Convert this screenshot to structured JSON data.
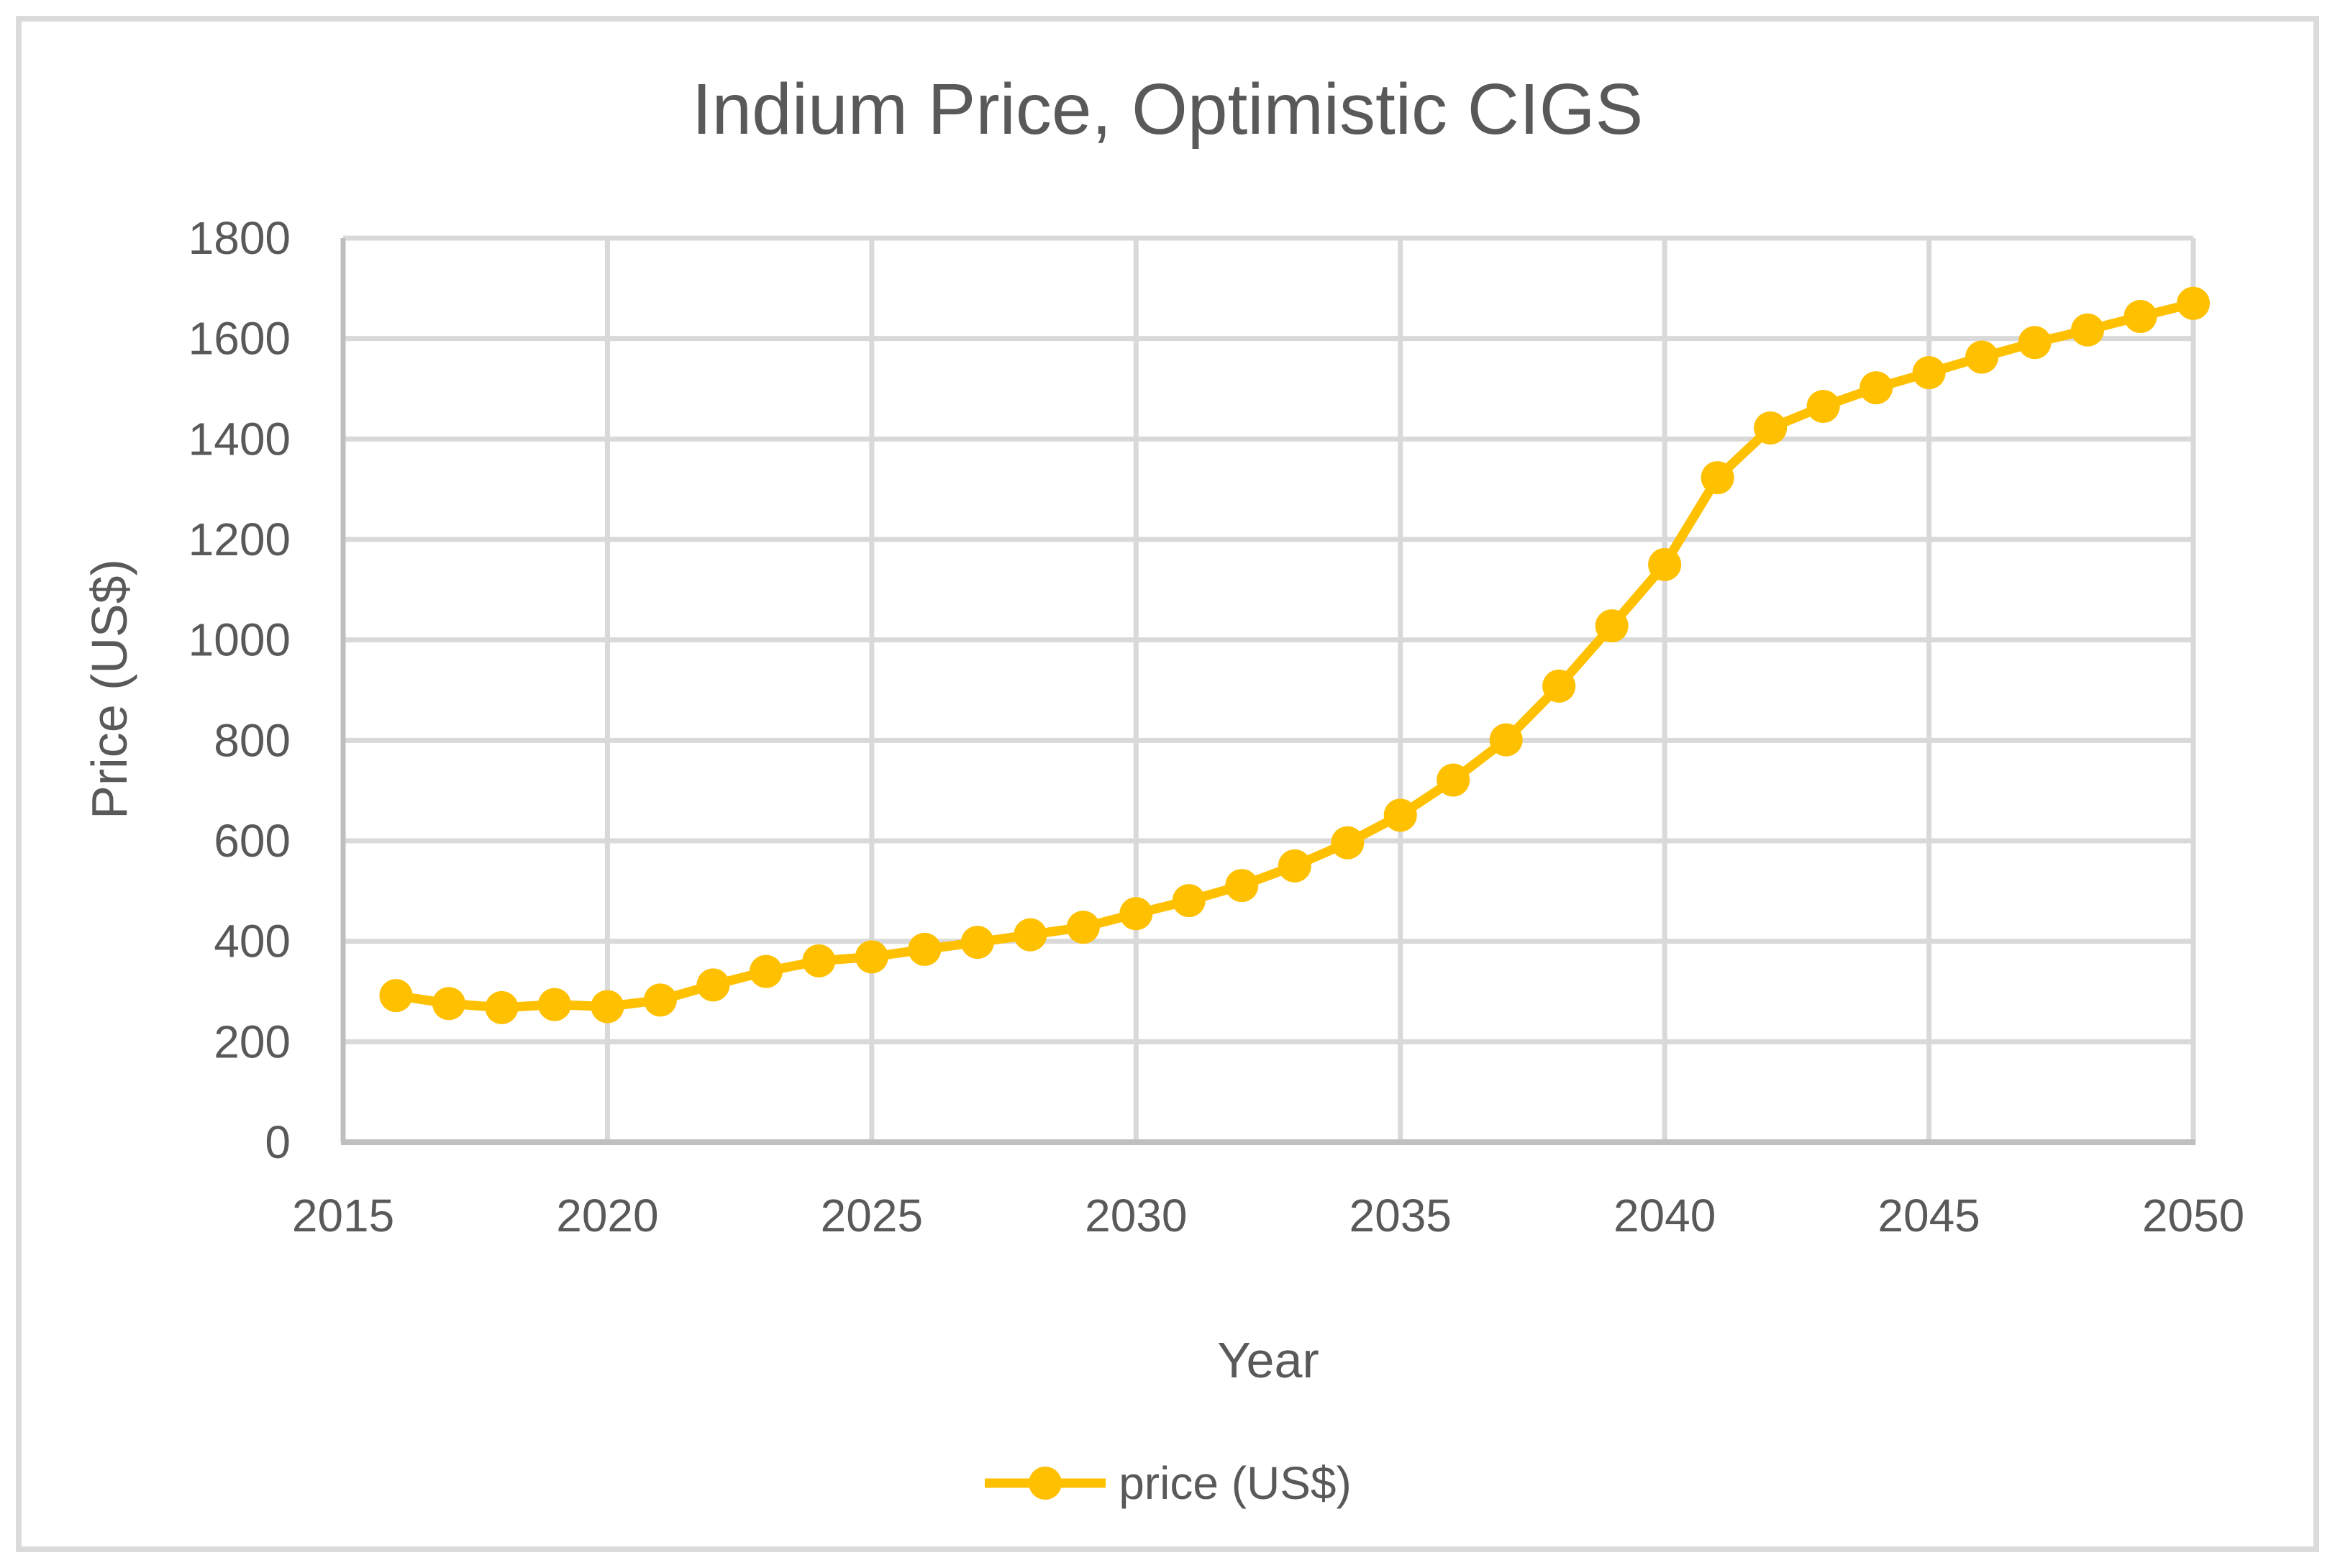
{
  "figure": {
    "title": "Indium Price, Optimistic CIGS"
  },
  "colors": {
    "series": "#FFC000",
    "text": "#595959",
    "gridline": "#D9D9D9",
    "axis_line": "#BFBFBF",
    "figure_border": "#DBDBDB",
    "background": "#FFFFFF"
  },
  "legend": {
    "items": [
      {
        "label": "price (US$)",
        "color": "#FFC000",
        "marker": "circle"
      }
    ]
  },
  "chart_data": {
    "type": "line",
    "title": "Indium Price, Optimistic CIGS",
    "xlabel": "Year",
    "ylabel": "Price (US$)",
    "xlim": [
      2015,
      2050
    ],
    "ylim": [
      0,
      1800
    ],
    "x_ticks": [
      2015,
      2020,
      2025,
      2030,
      2035,
      2040,
      2045,
      2050
    ],
    "y_ticks": [
      0,
      200,
      400,
      600,
      800,
      1000,
      1200,
      1400,
      1600,
      1800
    ],
    "grid": true,
    "legend_position": "bottom",
    "series": [
      {
        "name": "price (US$)",
        "x": [
          2016,
          2017,
          2018,
          2019,
          2020,
          2021,
          2022,
          2023,
          2024,
          2025,
          2026,
          2027,
          2028,
          2029,
          2030,
          2031,
          2032,
          2033,
          2034,
          2035,
          2036,
          2037,
          2038,
          2039,
          2040,
          2041,
          2042,
          2043,
          2044,
          2045,
          2046,
          2047,
          2048,
          2049,
          2050
        ],
        "values": [
          292,
          276,
          268,
          274,
          270,
          283,
          313,
          340,
          361,
          369,
          384,
          398,
          413,
          428,
          455,
          481,
          511,
          550,
          596,
          651,
          721,
          801,
          908,
          1028,
          1150,
          1323,
          1422,
          1465,
          1502,
          1532,
          1563,
          1592,
          1617,
          1644,
          1670
        ]
      }
    ]
  }
}
